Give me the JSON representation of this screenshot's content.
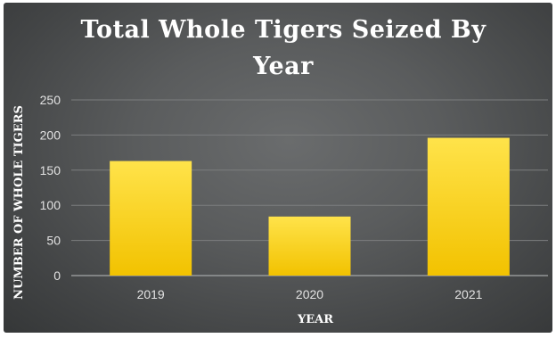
{
  "chart_data": {
    "type": "bar",
    "title_lines": [
      "Total Whole Tigers Seized By",
      "Year"
    ],
    "categories": [
      "2019",
      "2020",
      "2021"
    ],
    "values": [
      163,
      84,
      196
    ],
    "xlabel": "YEAR",
    "ylabel": "NUMBER OF WHOLE TIGERS",
    "ylim": [
      0,
      250
    ],
    "yticks": [
      "0",
      "50",
      "100",
      "150",
      "200",
      "250"
    ],
    "grid": true,
    "legend": "none"
  },
  "colors": {
    "bar_top": "#ffe34a",
    "bar_bottom": "#f2c200",
    "background": "#5a5c5d"
  }
}
